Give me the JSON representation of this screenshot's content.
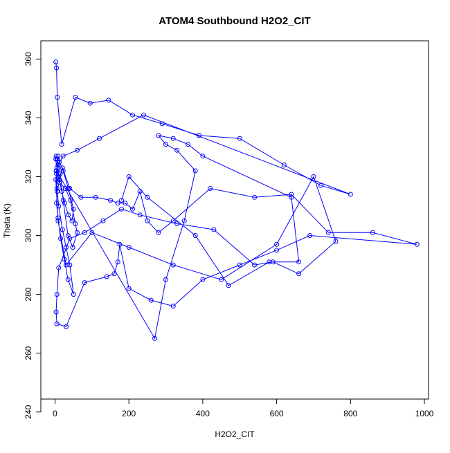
{
  "chart_data": {
    "type": "scatter",
    "title": "ATOM4 Southbound H2O2_CIT",
    "xlabel": "H2O2_CIT",
    "ylabel": "Theta (K)",
    "xlim": [
      0,
      1000
    ],
    "ylim": [
      240,
      360
    ],
    "x_ticks": [
      0,
      200,
      400,
      600,
      800,
      1000
    ],
    "y_ticks": [
      240,
      260,
      280,
      300,
      320,
      340,
      360
    ],
    "grid": false,
    "legend": "none",
    "series_color": "#0000ff",
    "series": [
      {
        "style": "points-connected",
        "x": [
          2,
          4,
          6,
          18,
          55,
          95,
          145,
          210,
          290,
          390,
          500,
          620,
          720,
          800,
          240,
          120,
          60,
          22,
          8,
          4,
          2,
          8,
          30,
          100,
          200,
          320,
          450,
          600,
          700,
          760,
          660,
          590,
          540,
          430,
          330,
          230,
          180,
          130,
          80,
          40,
          10,
          5,
          3,
          5,
          30,
          80,
          140,
          160,
          170,
          175,
          200,
          260,
          320,
          400,
          500,
          600,
          690,
          980,
          860,
          740,
          640,
          540,
          420,
          320,
          280,
          250,
          230,
          210,
          190,
          170,
          150,
          110,
          70,
          40,
          20,
          12,
          6,
          4,
          8,
          15,
          25,
          35,
          50,
          40,
          30,
          20,
          10,
          5,
          3,
          12,
          28,
          42,
          55,
          60,
          48,
          35,
          22,
          14,
          8,
          6,
          3,
          2,
          5,
          10,
          18,
          26,
          36,
          46,
          50,
          36,
          22,
          12,
          8,
          4,
          270,
          300,
          350,
          380,
          330,
          300,
          280,
          320,
          360,
          400,
          640,
          660,
          580,
          470,
          380,
          250,
          200,
          180
        ],
        "y": [
          359,
          357,
          347,
          331,
          347,
          345,
          346,
          341,
          338,
          334,
          333,
          324,
          317,
          314,
          341,
          333,
          329,
          327,
          324,
          321,
          319,
          305,
          290,
          301,
          296,
          290,
          285,
          297,
          320,
          298,
          287,
          291,
          290,
          302,
          304,
          307,
          309,
          305,
          301,
          299,
          289,
          280,
          274,
          270,
          269,
          284,
          286,
          287,
          291,
          297,
          282,
          278,
          276,
          285,
          290,
          295,
          300,
          297,
          301,
          301,
          314,
          313,
          316,
          305,
          301,
          305,
          315,
          309,
          311,
          311,
          312,
          313,
          313,
          316,
          323,
          319,
          315,
          311,
          306,
          299,
          292,
          285,
          280,
          290,
          296,
          302,
          310,
          316,
          322,
          318,
          316,
          312,
          304,
          301,
          296,
          300,
          312,
          321,
          325,
          326,
          327,
          326,
          323,
          320,
          315,
          311,
          307,
          305,
          309,
          316,
          322,
          325,
          327,
          322,
          265,
          285,
          305,
          322,
          329,
          331,
          334,
          333,
          331,
          327,
          313,
          291,
          291,
          283,
          300,
          313,
          320,
          312
        ]
      }
    ]
  }
}
